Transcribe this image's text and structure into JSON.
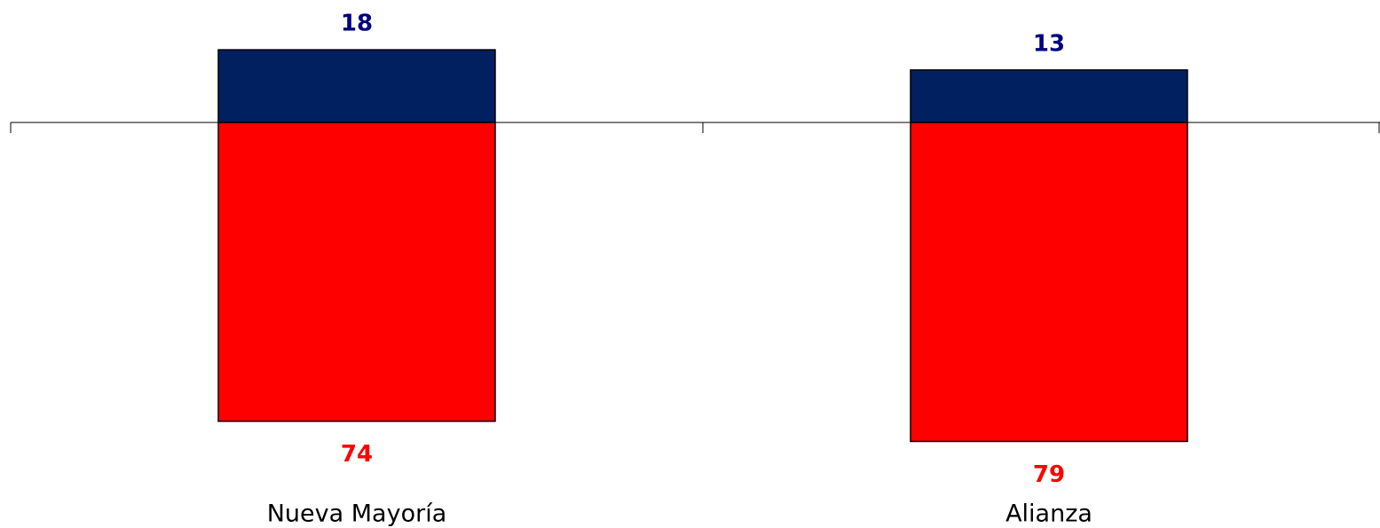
{
  "chart_data": {
    "type": "bar",
    "stacked": true,
    "categories": [
      "Nueva Mayoría",
      "Alianza"
    ],
    "series": [
      {
        "color": "#002060",
        "label_color": "#000080",
        "values": [
          18,
          13
        ]
      },
      {
        "color": "#ff0000",
        "label_color": "#ff0000",
        "values": [
          -74,
          -79
        ],
        "value_labels": [
          "74",
          "79"
        ]
      }
    ],
    "ylim": [
      -90,
      30
    ]
  }
}
